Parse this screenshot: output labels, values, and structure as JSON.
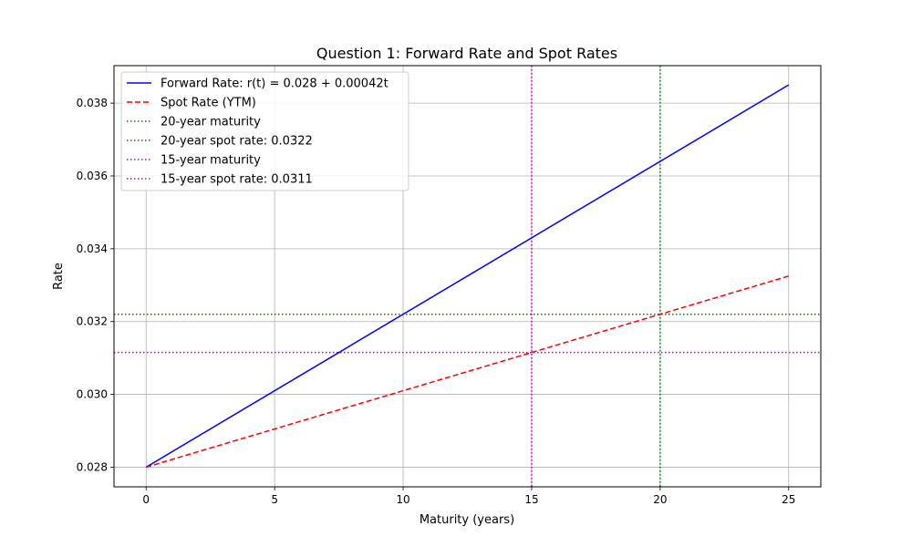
{
  "chart_data": {
    "type": "line",
    "title": "Question 1: Forward Rate and Spot Rates",
    "xlabel": "Maturity (years)",
    "ylabel": "Rate",
    "xlim": [
      -1.25,
      26.25
    ],
    "ylim": [
      0.02746,
      0.03903
    ],
    "xticks": [
      0,
      5,
      10,
      15,
      20,
      25
    ],
    "xtick_labels": [
      "0",
      "5",
      "10",
      "15",
      "20",
      "25"
    ],
    "yticks": [
      0.028,
      0.03,
      0.032,
      0.034,
      0.036,
      0.038
    ],
    "ytick_labels": [
      "0.028",
      "0.030",
      "0.032",
      "0.034",
      "0.036",
      "0.038"
    ],
    "grid": true,
    "legend_position": "top-left",
    "series": [
      {
        "name": "Forward Rate: r(t) = 0.028 + 0.00042t",
        "kind": "line",
        "style": "solid",
        "color": "#0000ff",
        "x": [
          0,
          25
        ],
        "y": [
          0.028,
          0.0385
        ]
      },
      {
        "name": "Spot Rate (YTM)",
        "kind": "line",
        "style": "dashed",
        "color": "#ff0000",
        "x": [
          0,
          25
        ],
        "y": [
          0.028,
          0.03325
        ]
      }
    ],
    "reference_lines": [
      {
        "name": "20-year maturity",
        "orientation": "vertical",
        "value": 20,
        "color": "#008000"
      },
      {
        "name": "20-year spot rate: 0.0322",
        "orientation": "horizontal",
        "value": 0.0322,
        "color": "#008000"
      },
      {
        "name": "15-year maturity",
        "orientation": "vertical",
        "value": 15,
        "color": "#bf00bf"
      },
      {
        "name": "15-year spot rate: 0.0311",
        "orientation": "horizontal",
        "value": 0.03115,
        "color": "#bf00bf"
      }
    ]
  }
}
